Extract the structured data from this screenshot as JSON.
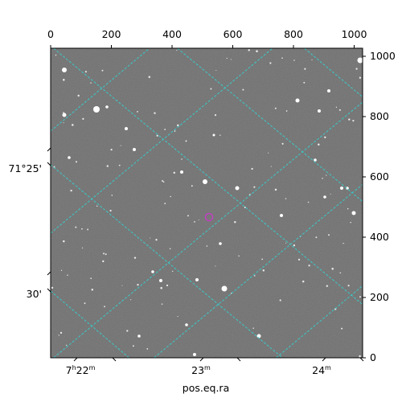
{
  "figure": {
    "x_axis_bottom_label": "pos.eq.ra",
    "top_pixel_ticks": [
      "0",
      "200",
      "400",
      "600",
      "800",
      "1000"
    ],
    "right_pixel_ticks": [
      "0",
      "200",
      "400",
      "600",
      "800",
      "1000"
    ],
    "ra_ticks": [
      {
        "h": "7",
        "m": "22",
        "sup_h": "h",
        "sup_m": "m"
      },
      {
        "h": "",
        "m": "23",
        "sup_h": "",
        "sup_m": "m"
      },
      {
        "h": "",
        "m": "24",
        "sup_h": "",
        "sup_m": "m"
      }
    ],
    "dec_ticks": [
      "71°25'",
      "30'"
    ],
    "grid_color": "#3cc8c8",
    "marker_color": "#c040c0",
    "background_color": "#6a6a6a"
  }
}
